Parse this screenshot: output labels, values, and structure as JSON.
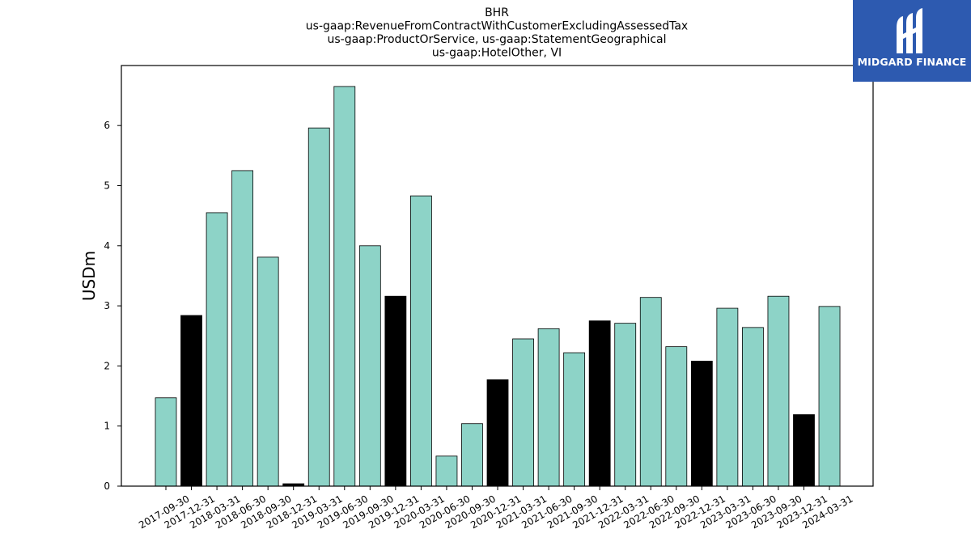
{
  "chart_data": {
    "type": "bar",
    "title_lines": [
      "BHR",
      "us-gaap:RevenueFromContractWithCustomerExcludingAssessedTax",
      "us-gaap:ProductOrService, us-gaap:StatementGeographical",
      "us-gaap:HotelOther, VI"
    ],
    "ylabel": "USDm",
    "xlabel": "",
    "ylim": [
      0,
      7
    ],
    "yticks": [
      0,
      1,
      2,
      3,
      4,
      5,
      6
    ],
    "categories": [
      "2017-09-30",
      "2017-12-31",
      "2018-03-31",
      "2018-06-30",
      "2018-09-30",
      "2018-12-31",
      "2019-03-31",
      "2019-06-30",
      "2019-09-30",
      "2019-12-31",
      "2020-03-31",
      "2020-06-30",
      "2020-09-30",
      "2020-12-31",
      "2021-03-31",
      "2021-06-30",
      "2021-09-30",
      "2021-12-31",
      "2022-03-31",
      "2022-06-30",
      "2022-09-30",
      "2022-12-31",
      "2023-03-31",
      "2023-06-30",
      "2023-09-30",
      "2023-12-31",
      "2024-03-31"
    ],
    "values": [
      1.47,
      2.84,
      4.55,
      5.25,
      3.81,
      0.04,
      5.96,
      6.65,
      4.0,
      3.16,
      4.83,
      0.5,
      1.04,
      1.77,
      2.45,
      2.62,
      2.22,
      2.75,
      2.71,
      3.14,
      2.32,
      2.08,
      2.96,
      2.64,
      3.16,
      1.19,
      2.99
    ],
    "highlight": [
      false,
      true,
      false,
      false,
      false,
      true,
      false,
      false,
      false,
      true,
      false,
      false,
      false,
      true,
      false,
      false,
      false,
      true,
      false,
      false,
      false,
      true,
      false,
      false,
      false,
      true,
      false
    ],
    "colors": {
      "normal": "#8dd3c7",
      "highlight": "#000000",
      "edge": "#000000"
    },
    "grid": false,
    "legend": "none"
  },
  "logo": {
    "text": "MIDGARD FINANCE",
    "background": "#2d5ab0"
  }
}
